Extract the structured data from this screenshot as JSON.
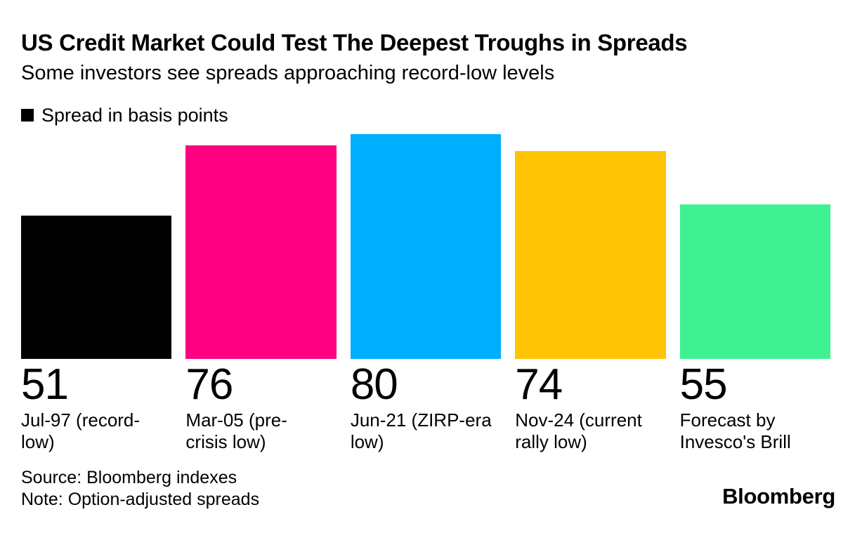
{
  "header": {
    "title": "US Credit Market Could Test The Deepest Troughs in Spreads",
    "subtitle": "Some investors see spreads approaching record-low levels"
  },
  "legend": {
    "label": "Spread in basis points",
    "swatch_color": "#000000"
  },
  "chart_data": {
    "type": "bar",
    "title": "US Credit Market Could Test The Deepest Troughs in Spreads",
    "subtitle": "Some investors see spreads approaching record-low levels",
    "legend_label": "Spread in basis points",
    "ylabel": "Spread in basis points",
    "xlabel": "",
    "categories": [
      "Jul-97 (record-low)",
      "Mar-05 (pre-crisis low)",
      "Jun-21 (ZIRP-era low)",
      "Nov-24 (current rally low)",
      "Forecast by Invesco's Brill"
    ],
    "category_display_lines": [
      [
        "Jul-97 (record-",
        "low)"
      ],
      [
        "Mar-05 (pre-",
        "crisis low)"
      ],
      [
        "Jun-21 (ZIRP-era",
        "low)"
      ],
      [
        "Nov-24 (current",
        "rally low)"
      ],
      [
        "Forecast by",
        "Invesco's Brill"
      ]
    ],
    "values": [
      51,
      76,
      80,
      74,
      55
    ],
    "bar_colors": [
      "#000000",
      "#FF0083",
      "#00AEFF",
      "#FFC403",
      "#3EF291"
    ],
    "ylim": [
      0,
      80
    ],
    "grid": false,
    "axis_shown": false,
    "value_labels_shown": true,
    "legend_position": "top-left"
  },
  "footer": {
    "source": "Source: Bloomberg indexes",
    "note": "Note: Option-adjusted spreads",
    "logo": "Bloomberg"
  }
}
